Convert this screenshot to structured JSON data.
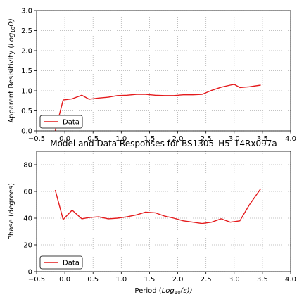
{
  "chart_data": [
    {
      "type": "line",
      "title": "",
      "xlabel": "",
      "ylabel": "Apparent Resisitivity (Log10Ω)",
      "xlim": [
        -0.5,
        4.0
      ],
      "ylim": [
        0.0,
        3.0
      ],
      "xticks": [
        "−0.5",
        "0.0",
        "0.5",
        "1.0",
        "1.5",
        "2.0",
        "2.5",
        "3.0",
        "3.5",
        "4.0"
      ],
      "yticks": [
        "0.0",
        "0.5",
        "1.0",
        "1.5",
        "2.0",
        "2.5",
        "3.0"
      ],
      "grid": true,
      "legend": "lower-left",
      "series": [
        {
          "name": "Data",
          "color": "#e41a1c",
          "x": [
            -0.17,
            -0.03,
            0.13,
            0.3,
            0.43,
            0.6,
            0.77,
            0.93,
            1.1,
            1.27,
            1.43,
            1.6,
            1.77,
            1.93,
            2.1,
            2.27,
            2.43,
            2.6,
            2.77,
            2.93,
            3.0,
            3.1,
            3.27,
            3.47
          ],
          "y": [
            0.0,
            0.77,
            0.8,
            0.89,
            0.79,
            0.82,
            0.84,
            0.88,
            0.89,
            0.91,
            0.91,
            0.89,
            0.88,
            0.88,
            0.9,
            0.9,
            0.91,
            1.01,
            1.09,
            1.14,
            1.16,
            1.08,
            1.1,
            1.14
          ]
        }
      ]
    },
    {
      "type": "line",
      "title": "Model and Data Responses for BS1305_H5_14Rx097a",
      "xlabel": "Period (Log10(s))",
      "ylabel": "Phase (degrees)",
      "xlim": [
        -0.5,
        4.0
      ],
      "ylim": [
        0,
        90
      ],
      "xticks": [
        "−0.5",
        "0.0",
        "0.5",
        "1.0",
        "1.5",
        "2.0",
        "2.5",
        "3.0",
        "3.5",
        "4.0"
      ],
      "yticks": [
        "0",
        "20",
        "40",
        "60",
        "80"
      ],
      "grid": true,
      "legend": "lower-left",
      "series": [
        {
          "name": "Data",
          "color": "#e41a1c",
          "x": [
            -0.17,
            -0.03,
            0.13,
            0.3,
            0.43,
            0.6,
            0.77,
            0.93,
            1.1,
            1.27,
            1.43,
            1.6,
            1.77,
            1.93,
            2.1,
            2.27,
            2.43,
            2.6,
            2.77,
            2.93,
            3.1,
            3.27,
            3.47
          ],
          "y": [
            61,
            39,
            46,
            39.5,
            40.5,
            41,
            39.5,
            40,
            41,
            42.5,
            44.5,
            44,
            41.5,
            40,
            38,
            37,
            36,
            37,
            39.5,
            37,
            38,
            50,
            62
          ]
        }
      ]
    }
  ]
}
